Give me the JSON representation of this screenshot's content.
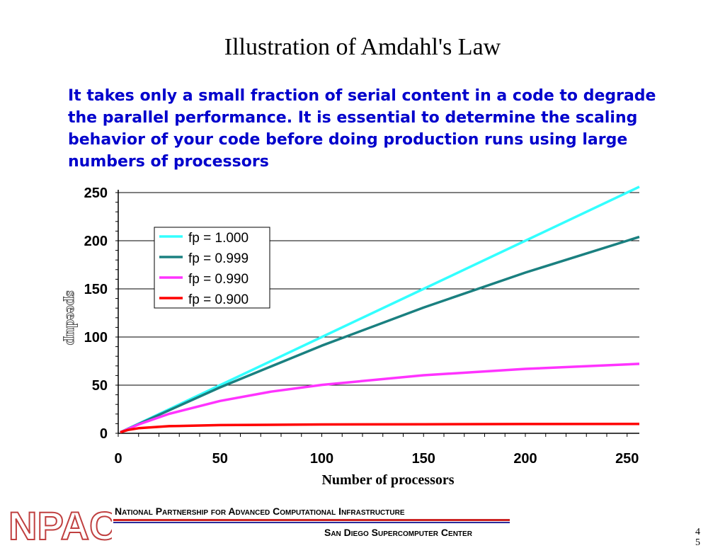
{
  "slide": {
    "title": "Illustration of Amdahl's Law",
    "subtitle": "It takes only a small fraction of serial content in a code to degrade the parallel performance. It is essential to determine the scaling behavior of your code before doing production runs using large numbers of processors",
    "page_number": "4",
    "page_number_cont": "5"
  },
  "footer": {
    "organization": "National Partnership for Advanced Computational Infrastructure",
    "center": "San Diego Supercomputer Center",
    "logo_text": "NPACI"
  },
  "colors": {
    "subtitle": "#0000cc",
    "series": [
      "#33ffff",
      "#1a8080",
      "#ff33ff",
      "#ff0000"
    ]
  },
  "chart_data": {
    "type": "line",
    "xlabel": "Number of processors",
    "ylabel": "speedup",
    "xlim": [
      0,
      256
    ],
    "ylim": [
      0,
      250
    ],
    "xticks": [
      0,
      50,
      100,
      150,
      200,
      250
    ],
    "yticks": [
      0,
      50,
      100,
      150,
      200,
      250
    ],
    "grid": "horizontal",
    "legend_position": "upper-left",
    "series": [
      {
        "name": "fp = 1.000",
        "x": [
          1,
          50,
          100,
          150,
          200,
          256
        ],
        "y": [
          1,
          50,
          100,
          150,
          200,
          256
        ]
      },
      {
        "name": "fp = 0.999",
        "x": [
          1,
          50,
          100,
          150,
          200,
          256
        ],
        "y": [
          1,
          47.7,
          91.0,
          130.6,
          166.9,
          204.0
        ]
      },
      {
        "name": "fp = 0.990",
        "x": [
          1,
          10,
          25,
          50,
          75,
          100,
          150,
          200,
          256
        ],
        "y": [
          1,
          9.2,
          20.2,
          33.6,
          43.2,
          50.3,
          60.3,
          66.9,
          72.1
        ]
      },
      {
        "name": "fp = 0.900",
        "x": [
          1,
          5,
          10,
          25,
          50,
          100,
          150,
          200,
          256
        ],
        "y": [
          1,
          3.6,
          5.3,
          7.4,
          8.5,
          9.2,
          9.4,
          9.6,
          9.7
        ]
      }
    ]
  }
}
